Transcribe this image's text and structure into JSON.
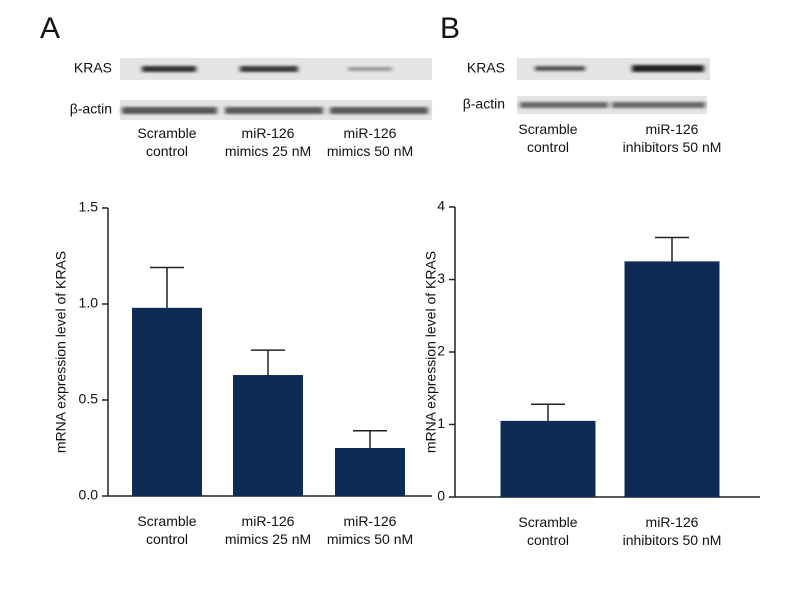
{
  "chart_data": [
    {
      "type": "bar",
      "panel": "A",
      "blot_rows": [
        "KRAS",
        "β-actin"
      ],
      "categories": [
        "Scramble\ncontrol",
        "miR-126\nmimics 25 nM",
        "miR-126\nmimics 50 nM"
      ],
      "values": [
        0.98,
        0.63,
        0.25
      ],
      "errors": [
        0.21,
        0.13,
        0.09
      ],
      "color": "#0d2b55",
      "y_label": "mRNA expression level of KRAS",
      "ylim": [
        0,
        1.5
      ],
      "yticks": [
        {
          "value": 0,
          "label": "0.0"
        },
        0.5,
        {
          "value": 1,
          "label": "1.0"
        },
        1.5
      ]
    },
    {
      "type": "bar",
      "panel": "B",
      "blot_rows": [
        "KRAS",
        "β-actin"
      ],
      "categories": [
        "Scramble\ncontrol",
        "miR-126\ninhibitors 50 nM"
      ],
      "values": [
        1.05,
        3.25
      ],
      "errors": [
        0.23,
        0.33
      ],
      "color": "#0d2b55",
      "y_label": "mRNA expression level of KRAS",
      "ylim": [
        0,
        4
      ],
      "yticks": [
        0,
        1,
        2,
        3,
        4
      ]
    }
  ]
}
